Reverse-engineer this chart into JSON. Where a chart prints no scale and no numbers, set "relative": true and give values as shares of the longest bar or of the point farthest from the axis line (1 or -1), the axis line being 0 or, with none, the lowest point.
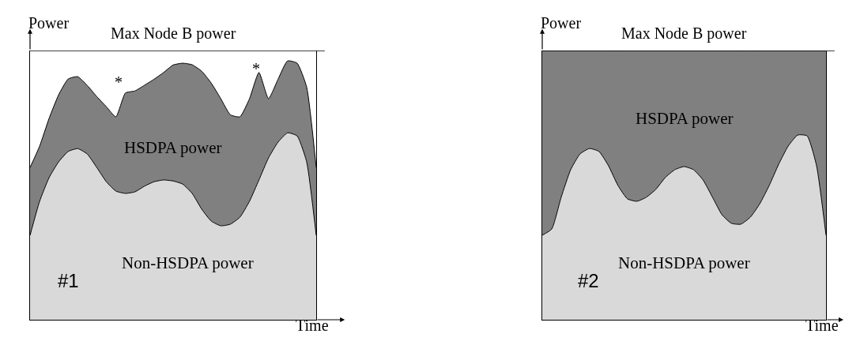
{
  "chart_data": [
    {
      "type": "area",
      "stacked": true,
      "relative": true,
      "xlabel": "Time",
      "ylabel": "Power",
      "legend": false,
      "grid": false,
      "categories": [
        null,
        null,
        null,
        null,
        null,
        null,
        null,
        null,
        null,
        null,
        null,
        null,
        null,
        null,
        null,
        null,
        null,
        null,
        null,
        null,
        null,
        null,
        null,
        null,
        null,
        null,
        null,
        null,
        null,
        null,
        null
      ],
      "series": [
        {
          "name": "Non-HSDPA power",
          "color": "#d9d9d9",
          "values": [
            0.326,
            0.457,
            0.549,
            0.61,
            0.65,
            0.661,
            0.64,
            0.588,
            0.533,
            0.497,
            0.488,
            0.494,
            0.516,
            0.533,
            0.54,
            0.536,
            0.524,
            0.488,
            0.427,
            0.381,
            0.363,
            0.369,
            0.396,
            0.457,
            0.54,
            0.625,
            0.686,
            0.722,
            0.71,
            0.61,
            0.326
          ]
        },
        {
          "name": "HSDPA power",
          "color": "#808080",
          "values": [
            0.262,
            0.213,
            0.229,
            0.259,
            0.28,
            0.278,
            0.265,
            0.274,
            0.29,
            0.287,
            0.388,
            0.39,
            0.39,
            0.396,
            0.415,
            0.448,
            0.467,
            0.497,
            0.533,
            0.533,
            0.491,
            0.423,
            0.388,
            0.396,
            0.415,
            0.229,
            0.243,
            0.278,
            0.281,
            0.289,
            0.262
          ]
        }
      ],
      "ref_lines": [
        {
          "axis": "y",
          "value": 1.04,
          "label": "Max Node B power",
          "color": "#000000"
        }
      ],
      "annotations": [
        "#1",
        "*",
        "*"
      ]
    },
    {
      "type": "area",
      "stacked": true,
      "relative": true,
      "xlabel": "Time",
      "ylabel": "Power",
      "legend": false,
      "grid": false,
      "categories": [
        null,
        null,
        null,
        null,
        null,
        null,
        null,
        null,
        null,
        null,
        null,
        null,
        null,
        null,
        null,
        null,
        null,
        null,
        null,
        null,
        null,
        null,
        null,
        null,
        null,
        null,
        null,
        null,
        null,
        null,
        null
      ],
      "series": [
        {
          "name": "Non-HSDPA power",
          "color": "#d9d9d9",
          "values": [
            0.314,
            0.337,
            0.455,
            0.557,
            0.616,
            0.636,
            0.625,
            0.572,
            0.499,
            0.449,
            0.44,
            0.455,
            0.484,
            0.528,
            0.557,
            0.569,
            0.557,
            0.519,
            0.455,
            0.39,
            0.358,
            0.355,
            0.381,
            0.431,
            0.499,
            0.578,
            0.645,
            0.686,
            0.683,
            0.572,
            0.314
          ]
        },
        {
          "name": "HSDPA power",
          "color": "#808080",
          "values": [
            0.686,
            0.663,
            0.545,
            0.443,
            0.384,
            0.364,
            0.375,
            0.428,
            0.501,
            0.551,
            0.56,
            0.545,
            0.516,
            0.472,
            0.443,
            0.431,
            0.443,
            0.481,
            0.545,
            0.61,
            0.642,
            0.645,
            0.619,
            0.569,
            0.501,
            0.422,
            0.355,
            0.314,
            0.317,
            0.428,
            0.686
          ]
        }
      ],
      "ref_lines": [
        {
          "axis": "y",
          "value": 1,
          "label": "Max Node B power",
          "color": "#000000"
        }
      ],
      "annotations": [
        "#2"
      ]
    }
  ]
}
